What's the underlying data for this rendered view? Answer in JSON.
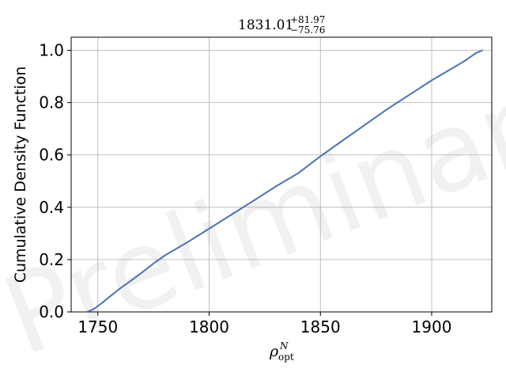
{
  "chart_data": {
    "type": "line",
    "title": {
      "base": "1831.01",
      "sup": "+81.97",
      "sub": "−75.76"
    },
    "xlabel": {
      "base": "ρ",
      "sup": "N",
      "sub": "opt"
    },
    "ylabel": "Cumulative Density Function",
    "watermark": "Preliminary",
    "xlim": [
      1738,
      1927
    ],
    "ylim": [
      0.0,
      1.05
    ],
    "xticks": [
      1750,
      1800,
      1850,
      1900
    ],
    "xtick_labels": [
      "1750",
      "1800",
      "1850",
      "1900"
    ],
    "yticks": [
      0.0,
      0.2,
      0.4,
      0.6,
      0.8,
      1.0
    ],
    "ytick_labels": [
      "0.0",
      "0.2",
      "0.4",
      "0.6",
      "0.8",
      "1.0"
    ],
    "grid": true,
    "line_color": "#4c72b0",
    "series": [
      {
        "x": [
          1745,
          1748,
          1752,
          1756,
          1760,
          1765,
          1770,
          1775,
          1780,
          1790,
          1800,
          1810,
          1820,
          1830,
          1840,
          1850,
          1860,
          1870,
          1880,
          1890,
          1900,
          1910,
          1915,
          1920,
          1923
        ],
        "y": [
          0.0,
          0.01,
          0.035,
          0.063,
          0.09,
          0.12,
          0.152,
          0.185,
          0.215,
          0.265,
          0.318,
          0.372,
          0.425,
          0.48,
          0.53,
          0.595,
          0.655,
          0.715,
          0.775,
          0.83,
          0.885,
          0.935,
          0.96,
          0.99,
          1.0
        ]
      }
    ]
  }
}
